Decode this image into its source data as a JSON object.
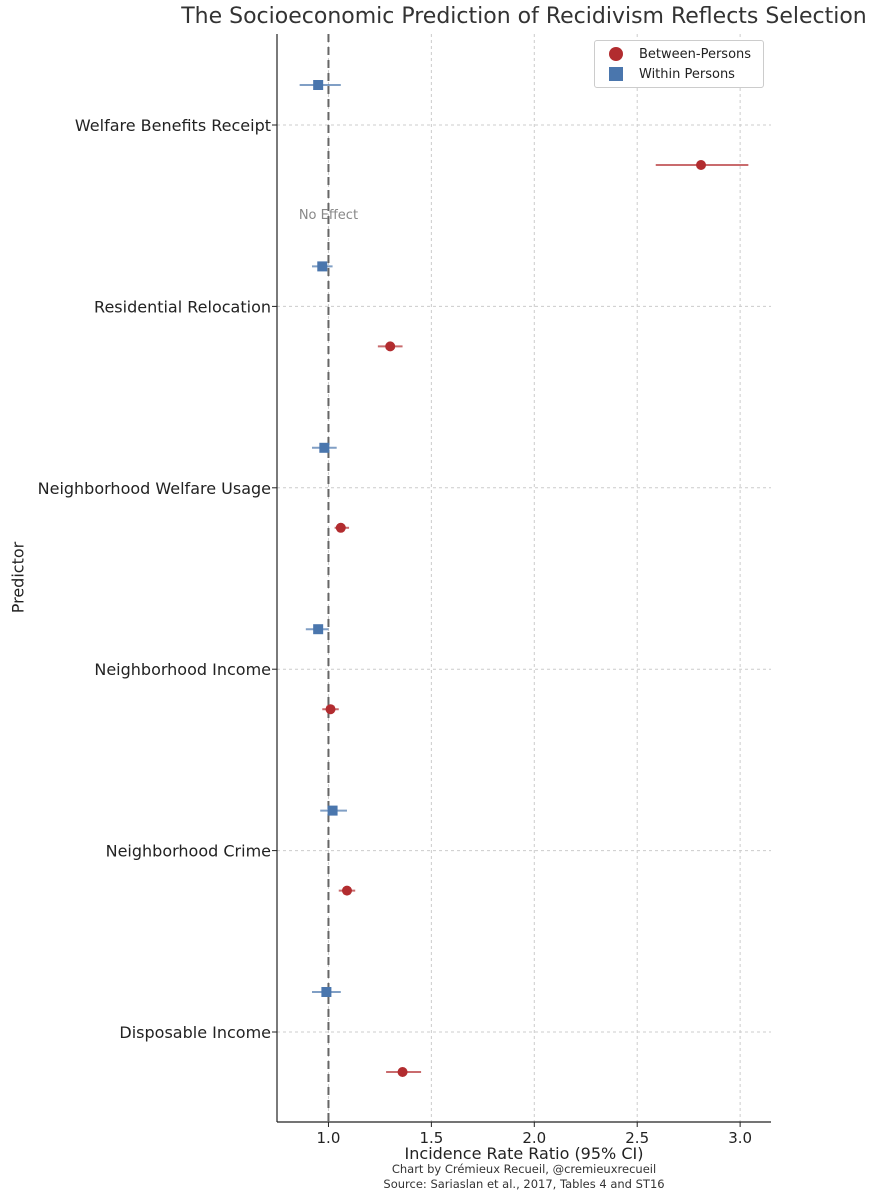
{
  "chart_data": {
    "type": "scatter",
    "title": "The Socioeconomic Prediction of Recidivism Reflects Selection",
    "xlabel": "Incidence Rate Ratio (95% CI)",
    "ylabel": "Predictor",
    "xlim": [
      0.75,
      3.15
    ],
    "xticks": [
      1.0,
      1.5,
      2.0,
      2.5,
      3.0
    ],
    "xtick_labels": [
      "1.0",
      "1.5",
      "2.0",
      "2.5",
      "3.0"
    ],
    "grid": true,
    "legend_position": "top-right",
    "reference_line": {
      "x": 1.0,
      "label": "No Effect"
    },
    "categories": [
      "Welfare Benefits Receipt",
      "Residential Relocation",
      "Neighborhood Welfare Usage",
      "Neighborhood Income",
      "Neighborhood Crime",
      "Disposable Income"
    ],
    "series": [
      {
        "name": "Between-Persons",
        "marker": "circle",
        "color": "#b22c2f",
        "values": [
          2.81,
          1.3,
          1.06,
          1.01,
          1.09,
          1.36
        ],
        "ci_low": [
          2.59,
          1.24,
          1.03,
          0.97,
          1.05,
          1.28
        ],
        "ci_high": [
          3.04,
          1.36,
          1.1,
          1.05,
          1.13,
          1.45
        ]
      },
      {
        "name": "Within Persons",
        "marker": "square",
        "color": "#4a76ad",
        "values": [
          0.95,
          0.97,
          0.98,
          0.95,
          1.02,
          0.99
        ],
        "ci_low": [
          0.86,
          0.92,
          0.92,
          0.89,
          0.96,
          0.92
        ],
        "ci_high": [
          1.06,
          1.02,
          1.04,
          1.0,
          1.09,
          1.06
        ]
      }
    ]
  },
  "credits": {
    "line1": "Chart by Crémieux Recueil, @cremieuxrecueil",
    "line2": "Source: Sariaslan et al., 2017, Tables 4 and ST16"
  }
}
